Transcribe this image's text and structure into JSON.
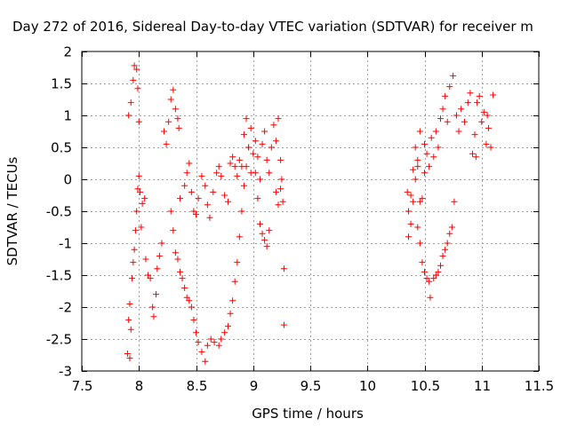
{
  "chart_data": {
    "type": "scatter",
    "title": "Day 272 of 2016, Sidereal Day-to-day VTEC variation (SDTVAR) for receiver m",
    "xlabel": "GPS time / hours",
    "ylabel": "SDTVAR / TECUs",
    "xlim": [
      7.5,
      11.5
    ],
    "ylim": [
      -3,
      2
    ],
    "xticks": [
      7.5,
      8,
      8.5,
      9,
      9.5,
      10,
      10.5,
      11,
      11.5
    ],
    "xtick_labels": [
      "7.5",
      "8",
      "8.5",
      "9",
      "9.5",
      "10",
      "10.5",
      "11",
      "11.5"
    ],
    "yticks": [
      -3,
      -2.5,
      -2,
      -1.5,
      -1,
      -0.5,
      0,
      0.5,
      1,
      1.5,
      2
    ],
    "ytick_labels": [
      "-3",
      "-2.5",
      "-2",
      "-1.5",
      "-1",
      "-0.5",
      "0",
      "0.5",
      "1",
      "1.5",
      "2"
    ],
    "grid": true,
    "marker": "+",
    "series": [
      {
        "name": "SDTVAR",
        "color": "#ff0000",
        "points": [
          [
            7.91,
            1.0
          ],
          [
            7.93,
            1.2
          ],
          [
            7.95,
            1.55
          ],
          [
            7.96,
            1.78
          ],
          [
            7.98,
            1.72
          ],
          [
            7.99,
            1.42
          ],
          [
            8.0,
            0.9
          ],
          [
            7.9,
            -2.73
          ],
          [
            7.92,
            -2.8
          ],
          [
            7.93,
            -2.35
          ],
          [
            7.91,
            -2.2
          ],
          [
            7.92,
            -1.95
          ],
          [
            7.94,
            -1.55
          ],
          [
            7.95,
            -1.3
          ],
          [
            7.96,
            -1.1
          ],
          [
            7.97,
            -0.8
          ],
          [
            7.98,
            -0.5
          ],
          [
            7.99,
            -0.15
          ],
          [
            8.0,
            0.05
          ],
          [
            8.01,
            -0.2
          ],
          [
            8.02,
            -0.75
          ],
          [
            8.03,
            -0.38
          ],
          [
            8.05,
            -0.3
          ],
          [
            8.06,
            -1.25
          ],
          [
            8.08,
            -1.5
          ],
          [
            8.1,
            -1.55
          ],
          [
            8.12,
            -2.0
          ],
          [
            8.13,
            -2.15
          ],
          [
            8.15,
            -1.8
          ],
          [
            8.16,
            -1.4
          ],
          [
            8.18,
            -1.2
          ],
          [
            8.2,
            -1.0
          ],
          [
            8.22,
            0.75
          ],
          [
            8.24,
            0.55
          ],
          [
            8.26,
            0.9
          ],
          [
            8.28,
            1.25
          ],
          [
            8.3,
            1.4
          ],
          [
            8.32,
            1.1
          ],
          [
            8.34,
            0.95
          ],
          [
            8.35,
            0.8
          ],
          [
            8.28,
            -0.5
          ],
          [
            8.3,
            -0.8
          ],
          [
            8.32,
            -1.15
          ],
          [
            8.34,
            -1.25
          ],
          [
            8.36,
            -1.45
          ],
          [
            8.38,
            -1.55
          ],
          [
            8.4,
            -1.7
          ],
          [
            8.42,
            -1.85
          ],
          [
            8.44,
            -1.9
          ],
          [
            8.46,
            -2.0
          ],
          [
            8.48,
            -2.2
          ],
          [
            8.5,
            -2.4
          ],
          [
            8.52,
            -2.55
          ],
          [
            8.55,
            -2.7
          ],
          [
            8.58,
            -2.85
          ],
          [
            8.6,
            -2.6
          ],
          [
            8.63,
            -2.5
          ],
          [
            8.66,
            -2.55
          ],
          [
            8.7,
            -2.6
          ],
          [
            8.72,
            -2.5
          ],
          [
            8.75,
            -2.4
          ],
          [
            8.78,
            -2.3
          ],
          [
            8.8,
            -2.1
          ],
          [
            8.82,
            -1.9
          ],
          [
            8.84,
            -1.6
          ],
          [
            8.86,
            -1.3
          ],
          [
            8.88,
            -0.9
          ],
          [
            8.9,
            -0.5
          ],
          [
            8.92,
            -0.1
          ],
          [
            8.94,
            0.2
          ],
          [
            8.96,
            0.5
          ],
          [
            8.98,
            0.8
          ],
          [
            9.0,
            0.4
          ],
          [
            9.02,
            0.1
          ],
          [
            9.04,
            -0.3
          ],
          [
            9.06,
            -0.7
          ],
          [
            9.08,
            -0.85
          ],
          [
            9.1,
            -0.95
          ],
          [
            9.12,
            -1.05
          ],
          [
            9.14,
            -0.8
          ],
          [
            8.36,
            -0.3
          ],
          [
            8.4,
            -0.1
          ],
          [
            8.42,
            0.1
          ],
          [
            8.44,
            0.25
          ],
          [
            8.46,
            -0.2
          ],
          [
            8.48,
            -0.5
          ],
          [
            8.5,
            -0.55
          ],
          [
            8.52,
            -0.3
          ],
          [
            8.55,
            0.05
          ],
          [
            8.58,
            -0.1
          ],
          [
            8.6,
            -0.4
          ],
          [
            8.62,
            -0.6
          ],
          [
            8.65,
            -0.2
          ],
          [
            8.68,
            0.1
          ],
          [
            8.7,
            0.2
          ],
          [
            8.72,
            0.05
          ],
          [
            8.75,
            -0.25
          ],
          [
            8.78,
            -0.35
          ],
          [
            8.8,
            0.25
          ],
          [
            8.82,
            0.35
          ],
          [
            8.84,
            0.2
          ],
          [
            8.86,
            0.05
          ],
          [
            8.88,
            0.3
          ],
          [
            8.9,
            0.2
          ],
          [
            8.92,
            0.7
          ],
          [
            8.94,
            0.95
          ],
          [
            8.96,
            0.5
          ],
          [
            8.98,
            0.1
          ],
          [
            9.02,
            0.6
          ],
          [
            9.04,
            0.35
          ],
          [
            9.06,
            0.0
          ],
          [
            9.08,
            0.55
          ],
          [
            9.1,
            0.75
          ],
          [
            9.12,
            0.3
          ],
          [
            9.14,
            0.1
          ],
          [
            9.16,
            0.5
          ],
          [
            9.18,
            0.85
          ],
          [
            9.2,
            0.6
          ],
          [
            9.22,
            0.95
          ],
          [
            9.24,
            0.3
          ],
          [
            9.25,
            0.0
          ],
          [
            9.26,
            -0.35
          ],
          [
            9.24,
            -0.15
          ],
          [
            9.22,
            -0.4
          ],
          [
            9.2,
            -0.2
          ],
          [
            9.27,
            -1.4
          ],
          [
            9.27,
            -2.28
          ],
          [
            10.35,
            -0.2
          ],
          [
            10.36,
            -0.5
          ],
          [
            10.38,
            -0.25
          ],
          [
            10.4,
            0.15
          ],
          [
            10.42,
            0.5
          ],
          [
            10.44,
            0.2
          ],
          [
            10.46,
            -0.35
          ],
          [
            10.48,
            -0.3
          ],
          [
            10.5,
            0.1
          ],
          [
            10.52,
            0.4
          ],
          [
            10.54,
            0.2
          ],
          [
            10.56,
            0.65
          ],
          [
            10.58,
            0.35
          ],
          [
            10.6,
            0.75
          ],
          [
            10.62,
            0.5
          ],
          [
            10.64,
            0.95
          ],
          [
            10.66,
            1.1
          ],
          [
            10.68,
            1.3
          ],
          [
            10.7,
            0.9
          ],
          [
            10.72,
            1.45
          ],
          [
            10.75,
            1.62
          ],
          [
            10.78,
            1.0
          ],
          [
            10.8,
            0.75
          ],
          [
            10.82,
            1.1
          ],
          [
            10.85,
            0.9
          ],
          [
            10.88,
            1.2
          ],
          [
            10.9,
            1.35
          ],
          [
            10.92,
            0.4
          ],
          [
            10.94,
            0.7
          ],
          [
            10.96,
            1.2
          ],
          [
            10.98,
            1.3
          ],
          [
            11.0,
            0.9
          ],
          [
            11.02,
            1.05
          ],
          [
            11.04,
            0.55
          ],
          [
            11.06,
            0.8
          ],
          [
            11.08,
            0.5
          ],
          [
            11.1,
            1.32
          ],
          [
            11.05,
            1.0
          ],
          [
            10.95,
            0.35
          ],
          [
            10.44,
            -0.75
          ],
          [
            10.46,
            -1.0
          ],
          [
            10.48,
            -1.3
          ],
          [
            10.5,
            -1.45
          ],
          [
            10.52,
            -1.55
          ],
          [
            10.54,
            -1.6
          ],
          [
            10.55,
            -1.85
          ],
          [
            10.58,
            -1.55
          ],
          [
            10.6,
            -1.5
          ],
          [
            10.62,
            -1.45
          ],
          [
            10.64,
            -1.35
          ],
          [
            10.66,
            -1.2
          ],
          [
            10.68,
            -1.1
          ],
          [
            10.7,
            -1.0
          ],
          [
            10.72,
            -0.85
          ],
          [
            10.74,
            -0.75
          ],
          [
            10.76,
            -0.35
          ],
          [
            10.36,
            -0.9
          ],
          [
            10.38,
            -0.7
          ],
          [
            10.4,
            -0.35
          ],
          [
            10.42,
            0.0
          ],
          [
            10.44,
            0.3
          ],
          [
            10.46,
            0.75
          ],
          [
            10.5,
            0.55
          ]
        ]
      }
    ]
  }
}
